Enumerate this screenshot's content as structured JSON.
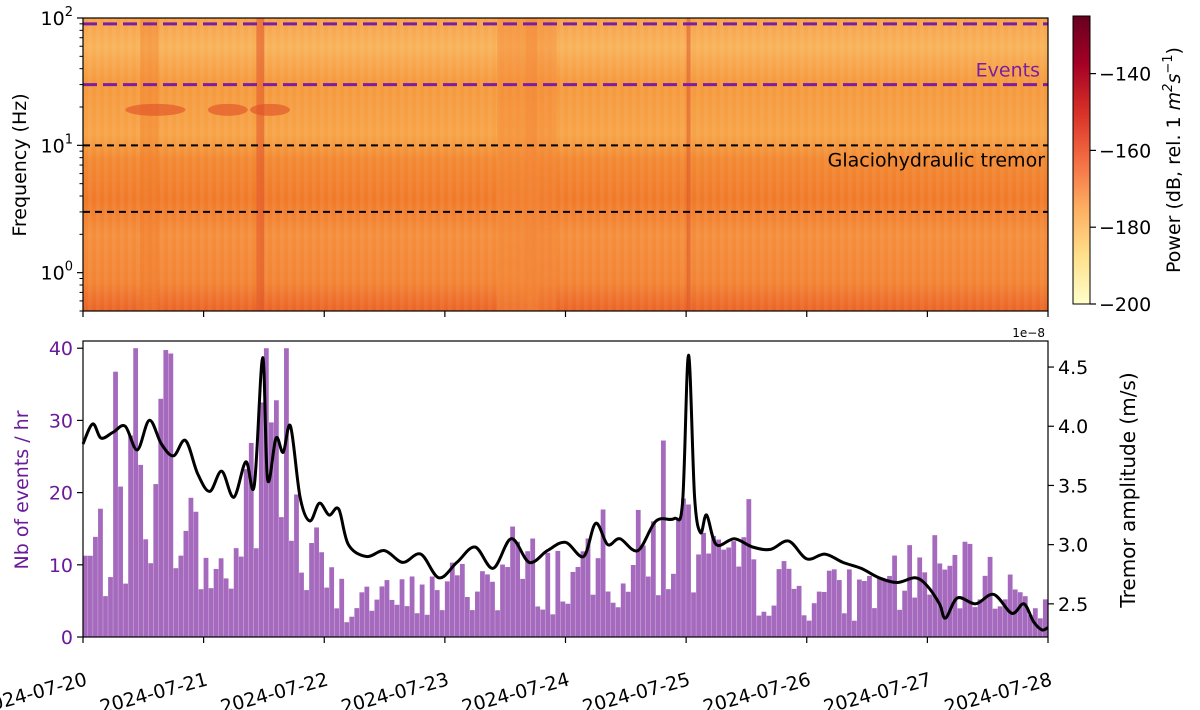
{
  "chart_data": [
    {
      "type": "heatmap",
      "ylabel": "Frequency (Hz)",
      "yscale": "log",
      "ylim": [
        0.5,
        100
      ],
      "yticks": [
        {
          "value": 1,
          "label": "10",
          "exp": "0"
        },
        {
          "value": 10,
          "label": "10",
          "exp": "1"
        },
        {
          "value": 100,
          "label": "10",
          "exp": "2"
        }
      ],
      "x_range": [
        "2024-07-20",
        "2024-07-28"
      ],
      "colorbar": {
        "label_prefix": "Power (dB, rel. 1 ",
        "label_unit": "m",
        "label_sup1": "2",
        "label_s": "s",
        "label_sup2": "−1",
        "label_suffix": ")",
        "range": [
          -200,
          -125
        ],
        "ticks": [
          "-140",
          "-160",
          "-180",
          "-200"
        ],
        "tick_values": [
          -140,
          -160,
          -180,
          -200
        ],
        "colormap": [
          "#fffecb",
          "#fee08b",
          "#fdae61",
          "#f46d43",
          "#d73027",
          "#a50026",
          "#67001f"
        ]
      },
      "bands": [
        {
          "name": "Events",
          "low_hz": 30,
          "high_hz": 90,
          "color": "#7b1fa2"
        },
        {
          "name": "Glaciohydraulic tremor",
          "low_hz": 3,
          "high_hz": 10,
          "color": "#000000"
        }
      ]
    },
    {
      "type": "bar+line",
      "dates": [
        "2024-07-20",
        "2024-07-21",
        "2024-07-22",
        "2024-07-23",
        "2024-07-24",
        "2024-07-25",
        "2024-07-26",
        "2024-07-27",
        "2024-07-28"
      ],
      "left_axis": {
        "label": "Nb of events / hr",
        "ylim": [
          0,
          41
        ],
        "ticks": [
          "0",
          "10",
          "20",
          "30",
          "40"
        ],
        "tick_values": [
          0,
          10,
          20,
          30,
          40
        ],
        "color": "#6a1b9a"
      },
      "right_axis": {
        "label": "Tremor amplitude (m/s)",
        "offset_label": "1e−8",
        "ylim": [
          2.22,
          4.72
        ],
        "ticks": [
          "2.5",
          "3.0",
          "3.5",
          "4.0",
          "4.5"
        ],
        "tick_values": [
          2.5,
          3.0,
          3.5,
          4.0,
          4.5
        ]
      },
      "events_color": "#8e44ad",
      "events_per_hr_approx": [
        {
          "t": 0,
          "v": 10
        },
        {
          "t": 0.25,
          "v": 14
        },
        {
          "t": 0.5,
          "v": 22
        },
        {
          "t": 0.7,
          "v": 28
        },
        {
          "t": 0.9,
          "v": 12
        },
        {
          "t": 1.1,
          "v": 8
        },
        {
          "t": 1.3,
          "v": 12
        },
        {
          "t": 1.5,
          "v": 33
        },
        {
          "t": 1.65,
          "v": 24
        },
        {
          "t": 1.8,
          "v": 10
        },
        {
          "t": 2.1,
          "v": 6
        },
        {
          "t": 2.5,
          "v": 5
        },
        {
          "t": 2.9,
          "v": 6
        },
        {
          "t": 3.3,
          "v": 8
        },
        {
          "t": 3.7,
          "v": 9
        },
        {
          "t": 4.1,
          "v": 8
        },
        {
          "t": 4.5,
          "v": 10
        },
        {
          "t": 4.9,
          "v": 14
        },
        {
          "t": 5.3,
          "v": 8
        },
        {
          "t": 5.7,
          "v": 7
        },
        {
          "t": 6.1,
          "v": 6
        },
        {
          "t": 6.5,
          "v": 6
        },
        {
          "t": 6.9,
          "v": 9
        },
        {
          "t": 7.3,
          "v": 8
        },
        {
          "t": 7.7,
          "v": 6
        },
        {
          "t": 8.0,
          "v": 5
        }
      ],
      "tremor_series": [
        {
          "t": 0.0,
          "v": 3.85
        },
        {
          "t": 0.08,
          "v": 4.02
        },
        {
          "t": 0.15,
          "v": 3.9
        },
        {
          "t": 0.25,
          "v": 3.95
        },
        {
          "t": 0.35,
          "v": 4.0
        },
        {
          "t": 0.45,
          "v": 3.8
        },
        {
          "t": 0.55,
          "v": 4.05
        },
        {
          "t": 0.65,
          "v": 3.85
        },
        {
          "t": 0.75,
          "v": 3.75
        },
        {
          "t": 0.85,
          "v": 3.88
        },
        {
          "t": 0.95,
          "v": 3.6
        },
        {
          "t": 1.05,
          "v": 3.45
        },
        {
          "t": 1.15,
          "v": 3.62
        },
        {
          "t": 1.25,
          "v": 3.4
        },
        {
          "t": 1.35,
          "v": 3.7
        },
        {
          "t": 1.42,
          "v": 3.5
        },
        {
          "t": 1.49,
          "v": 4.58
        },
        {
          "t": 1.53,
          "v": 3.55
        },
        {
          "t": 1.6,
          "v": 3.9
        },
        {
          "t": 1.66,
          "v": 3.78
        },
        {
          "t": 1.72,
          "v": 4.0
        },
        {
          "t": 1.8,
          "v": 3.4
        },
        {
          "t": 1.88,
          "v": 3.2
        },
        {
          "t": 1.96,
          "v": 3.35
        },
        {
          "t": 2.04,
          "v": 3.25
        },
        {
          "t": 2.12,
          "v": 3.3
        },
        {
          "t": 2.2,
          "v": 3.0
        },
        {
          "t": 2.35,
          "v": 2.9
        },
        {
          "t": 2.5,
          "v": 2.95
        },
        {
          "t": 2.65,
          "v": 2.85
        },
        {
          "t": 2.8,
          "v": 2.92
        },
        {
          "t": 2.95,
          "v": 2.72
        },
        {
          "t": 3.1,
          "v": 2.85
        },
        {
          "t": 3.25,
          "v": 2.98
        },
        {
          "t": 3.4,
          "v": 2.8
        },
        {
          "t": 3.55,
          "v": 3.05
        },
        {
          "t": 3.7,
          "v": 2.85
        },
        {
          "t": 3.85,
          "v": 2.95
        },
        {
          "t": 4.0,
          "v": 3.02
        },
        {
          "t": 4.15,
          "v": 2.9
        },
        {
          "t": 4.25,
          "v": 3.18
        },
        {
          "t": 4.35,
          "v": 3.0
        },
        {
          "t": 4.45,
          "v": 3.05
        },
        {
          "t": 4.6,
          "v": 2.95
        },
        {
          "t": 4.75,
          "v": 3.2
        },
        {
          "t": 4.9,
          "v": 3.22
        },
        {
          "t": 4.97,
          "v": 3.35
        },
        {
          "t": 5.02,
          "v": 4.6
        },
        {
          "t": 5.07,
          "v": 3.4
        },
        {
          "t": 5.12,
          "v": 3.1
        },
        {
          "t": 5.17,
          "v": 3.25
        },
        {
          "t": 5.25,
          "v": 3.0
        },
        {
          "t": 5.4,
          "v": 3.05
        },
        {
          "t": 5.55,
          "v": 2.98
        },
        {
          "t": 5.7,
          "v": 2.96
        },
        {
          "t": 5.85,
          "v": 3.03
        },
        {
          "t": 6.0,
          "v": 2.88
        },
        {
          "t": 6.15,
          "v": 2.92
        },
        {
          "t": 6.3,
          "v": 2.85
        },
        {
          "t": 6.45,
          "v": 2.8
        },
        {
          "t": 6.6,
          "v": 2.72
        },
        {
          "t": 6.75,
          "v": 2.68
        },
        {
          "t": 6.9,
          "v": 2.72
        },
        {
          "t": 7.0,
          "v": 2.65
        },
        {
          "t": 7.1,
          "v": 2.5
        },
        {
          "t": 7.15,
          "v": 2.38
        },
        {
          "t": 7.25,
          "v": 2.55
        },
        {
          "t": 7.4,
          "v": 2.5
        },
        {
          "t": 7.55,
          "v": 2.58
        },
        {
          "t": 7.7,
          "v": 2.42
        },
        {
          "t": 7.8,
          "v": 2.5
        },
        {
          "t": 7.88,
          "v": 2.35
        },
        {
          "t": 7.95,
          "v": 2.28
        },
        {
          "t": 8.0,
          "v": 2.3
        }
      ],
      "line_color": "#000000"
    }
  ]
}
